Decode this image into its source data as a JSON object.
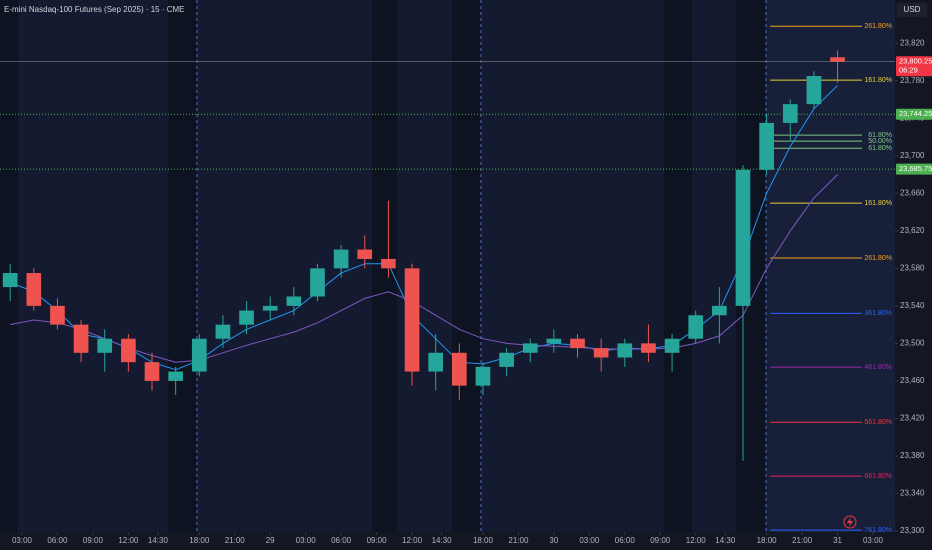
{
  "chart_data": {
    "type": "candlestick",
    "title": "E-mini Nasdaq-100 Futures (Sep 2025) · 15 · CME",
    "currency": "USD",
    "countdown": "06:29",
    "up_color": "#26a69a",
    "down_color": "#ef5350",
    "x": [
      2,
      4,
      6,
      8,
      10,
      12,
      14,
      16,
      18,
      20,
      22,
      24,
      26,
      28,
      30,
      32,
      34,
      36,
      38,
      40,
      42,
      44,
      46,
      48,
      50,
      52,
      54,
      56,
      58,
      60,
      62,
      64,
      66,
      68,
      70,
      72
    ],
    "open": [
      23560,
      23575,
      23540,
      23520,
      23490,
      23505,
      23480,
      23460,
      23470,
      23505,
      23520,
      23535,
      23540,
      23550,
      23580,
      23600,
      23590,
      23580,
      23470,
      23490,
      23455,
      23475,
      23490,
      23500,
      23505,
      23495,
      23485,
      23500,
      23490,
      23505,
      23530,
      23540,
      23685,
      23735,
      23755,
      23805
    ],
    "high": [
      23585,
      23580,
      23548,
      23525,
      23515,
      23510,
      23490,
      23475,
      23510,
      23530,
      23545,
      23550,
      23560,
      23585,
      23605,
      23615,
      23652,
      23585,
      23510,
      23500,
      23480,
      23495,
      23505,
      23515,
      23510,
      23505,
      23505,
      23520,
      23510,
      23535,
      23560,
      23690,
      23745,
      23760,
      23790,
      23812
    ],
    "low": [
      23545,
      23535,
      23515,
      23480,
      23470,
      23470,
      23450,
      23445,
      23465,
      23495,
      23510,
      23525,
      23530,
      23545,
      23570,
      23580,
      23570,
      23455,
      23450,
      23440,
      23445,
      23465,
      23480,
      23490,
      23485,
      23470,
      23475,
      23480,
      23470,
      23500,
      23500,
      23375,
      23680,
      23715,
      23750,
      23778
    ],
    "close": [
      23575,
      23540,
      23520,
      23490,
      23505,
      23480,
      23460,
      23470,
      23505,
      23520,
      23535,
      23540,
      23550,
      23580,
      23600,
      23590,
      23580,
      23470,
      23490,
      23455,
      23475,
      23490,
      23500,
      23505,
      23495,
      23485,
      23500,
      23490,
      23505,
      23530,
      23540,
      23685,
      23735,
      23755,
      23785,
      23800.25
    ],
    "lines": [
      {
        "color": "#2196f3",
        "values": [
          23565,
          23555,
          23535,
          23510,
          23505,
          23495,
          23480,
          23472,
          23482,
          23500,
          23515,
          23525,
          23535,
          23555,
          23575,
          23585,
          23585,
          23530,
          23505,
          23480,
          23478,
          23485,
          23495,
          23500,
          23498,
          23492,
          23495,
          23494,
          23498,
          23515,
          23535,
          23590,
          23660,
          23710,
          23750,
          23775
        ]
      },
      {
        "color": "#7e57c2",
        "values": [
          23520,
          23525,
          23522,
          23515,
          23505,
          23495,
          23487,
          23480,
          23482,
          23490,
          23498,
          23505,
          23512,
          23522,
          23535,
          23548,
          23555,
          23545,
          23530,
          23515,
          23505,
          23500,
          23498,
          23497,
          23496,
          23494,
          23494,
          23494,
          23495,
          23500,
          23508,
          23530,
          23580,
          23620,
          23655,
          23680
        ]
      }
    ],
    "price_labels": [
      {
        "value": 23800.25,
        "label": "23,800.25",
        "color": "#f23645"
      },
      {
        "value": 23744.25,
        "label": "23,744.25",
        "color": "#4caf50"
      },
      {
        "value": 23685.75,
        "label": "23,685.75",
        "color": "#4caf50"
      }
    ],
    "fib_levels": [
      {
        "label": "261.80%",
        "value": 23838,
        "color": "#f7a21b"
      },
      {
        "label": "161.80%",
        "value": 23780.6,
        "color": "#e8d13a"
      },
      {
        "label": "61.80%",
        "value": 23722,
        "color": "#81c784"
      },
      {
        "label": "50.00%",
        "value": 23715.6,
        "color": "#81c784"
      },
      {
        "label": "61.80%",
        "value": 23708,
        "color": "#81c784"
      },
      {
        "label": "161.80%",
        "value": 23649.5,
        "color": "#e8d13a"
      },
      {
        "label": "261.80%",
        "value": 23591,
        "color": "#f7a21b"
      },
      {
        "label": "361.80%",
        "value": 23532,
        "color": "#2962ff"
      },
      {
        "label": "461.80%",
        "value": 23474.7,
        "color": "#9c27b0"
      },
      {
        "label": "561.80%",
        "value": 23416,
        "color": "#f23645"
      },
      {
        "label": "661.80%",
        "value": 23358.6,
        "color": "#e91e63"
      },
      {
        "label": "761.80%",
        "value": 23301,
        "color": "#2962ff"
      }
    ],
    "xlim": [
      1.14,
      76.86
    ],
    "xticks": [
      {
        "value": 3,
        "label": "03:00"
      },
      {
        "value": 6,
        "label": "06:00"
      },
      {
        "value": 9,
        "label": "09:00"
      },
      {
        "value": 12,
        "label": "12:00"
      },
      {
        "value": 14.5,
        "label": "14:30"
      },
      {
        "value": 18,
        "label": "18:00"
      },
      {
        "value": 21,
        "label": "21:00"
      },
      {
        "value": 24,
        "label": "29"
      },
      {
        "value": 27,
        "label": "03:00"
      },
      {
        "value": 30,
        "label": "06:00"
      },
      {
        "value": 33,
        "label": "09:00"
      },
      {
        "value": 36,
        "label": "12:00"
      },
      {
        "value": 38.5,
        "label": "14:30"
      },
      {
        "value": 42,
        "label": "18:00"
      },
      {
        "value": 45,
        "label": "21:00"
      },
      {
        "value": 48,
        "label": "30"
      },
      {
        "value": 51,
        "label": "03:00"
      },
      {
        "value": 54,
        "label": "06:00"
      },
      {
        "value": 57,
        "label": "09:00"
      },
      {
        "value": 60,
        "label": "12:00"
      },
      {
        "value": 62.5,
        "label": "14:30"
      },
      {
        "value": 66,
        "label": "18:00"
      },
      {
        "value": 69,
        "label": "21:00"
      },
      {
        "value": 72,
        "label": "31"
      },
      {
        "value": 75,
        "label": "03:00"
      }
    ],
    "ylim": [
      23299,
      23866
    ],
    "yticks": [
      {
        "value": 23300,
        "label": "23,300"
      },
      {
        "value": 23340,
        "label": "23,340"
      },
      {
        "value": 23380,
        "label": "23,380"
      },
      {
        "value": 23420,
        "label": "23,420"
      },
      {
        "value": 23460,
        "label": "23,460"
      },
      {
        "value": 23500,
        "label": "23,500"
      },
      {
        "value": 23540,
        "label": "23,540"
      },
      {
        "value": 23580,
        "label": "23,580"
      },
      {
        "value": 23620,
        "label": "23,620"
      },
      {
        "value": 23660,
        "label": "23,660"
      },
      {
        "value": 23700,
        "label": "23,700"
      },
      {
        "value": 23740,
        "label": "23,740"
      },
      {
        "value": 23780,
        "label": "23,780"
      },
      {
        "value": 23820,
        "label": "23,820"
      }
    ]
  }
}
